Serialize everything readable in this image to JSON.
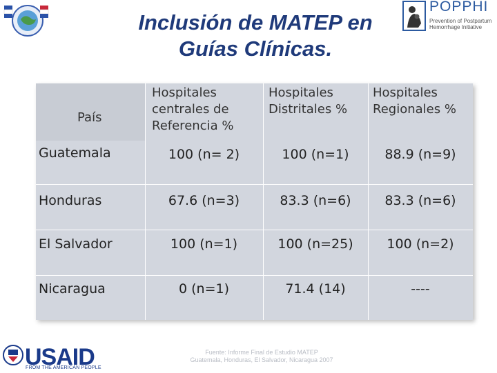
{
  "slide": {
    "title_line1": "Inclusión de MATEP en",
    "title_line2": "Guías Clínicas.",
    "footer_line1": "Fuente: Informe Final de Estudio MATEP",
    "footer_line2": "Guatemala, Honduras, El Salvador, Nicaragua 2007"
  },
  "logos": {
    "poppphi_word": "POPPHI",
    "poppphi_tag": "Prevention of Postpartum Hemorrhage Initiative",
    "usaid_word": "USAID",
    "usaid_sub": "FROM THE AMERICAN PEOPLE"
  },
  "table": {
    "headers": [
      "País",
      "Hospitales centrales  de Referencia %",
      "Hospitales Distritales %",
      "Hospitales Regionales %"
    ],
    "header_lines": {
      "central": [
        "Hospitales",
        "centrales  de",
        "Referencia %"
      ],
      "distrital": [
        "Hospitales",
        "Distritales %"
      ],
      "regional": [
        "Hospitales",
        "Regionales %"
      ]
    },
    "rows": [
      {
        "country": "Guatemala",
        "central": "100 (n= 2)",
        "distrital": "100 (n=1)",
        "regional": "88.9 (n=9)"
      },
      {
        "country": "Honduras",
        "central": "67.6 (n=3)",
        "distrital": "83.3 (n=6)",
        "regional": "83.3 (n=6)"
      },
      {
        "country": "El Salvador",
        "central": "100 (n=1)",
        "distrital": "100 (n=25)",
        "regional": "100 (n=2)"
      },
      {
        "country": "Nicaragua",
        "central": "0 (n=1)",
        "distrital": "71.4 (14)",
        "regional": "----"
      }
    ]
  },
  "colors": {
    "title": "#1f3a7a",
    "table_bg": "#d2d6de",
    "usaid_blue": "#1a3a8a"
  }
}
